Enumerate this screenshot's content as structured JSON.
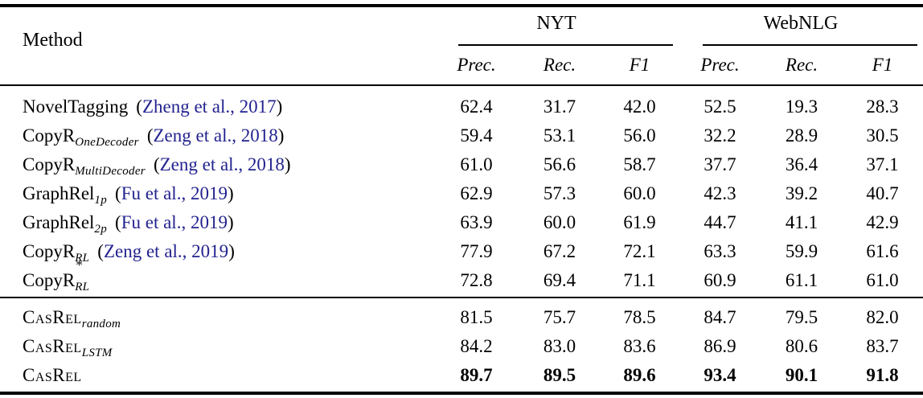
{
  "colors": {
    "citation": "#23238f",
    "text": "#000000"
  },
  "symbols": {
    "cite_open": "(",
    "cite_close": ")"
  },
  "header": {
    "method_label": "Method",
    "groups": [
      {
        "label": "NYT",
        "metrics": [
          "Prec.",
          "Rec.",
          "F1"
        ]
      },
      {
        "label": "WebNLG",
        "metrics": [
          "Prec.",
          "Rec.",
          "F1"
        ]
      }
    ]
  },
  "sections": [
    {
      "rows": [
        {
          "name": "NovelTagging",
          "smallcaps": false,
          "subscript": "",
          "superscript": "",
          "citation": "Zheng et al., 2017",
          "bold": false,
          "values": [
            "62.4",
            "31.7",
            "42.0",
            "52.5",
            "19.3",
            "28.3"
          ]
        },
        {
          "name": "CopyR",
          "smallcaps": false,
          "subscript": "OneDecoder",
          "superscript": "",
          "citation": "Zeng et al., 2018",
          "bold": false,
          "values": [
            "59.4",
            "53.1",
            "56.0",
            "32.2",
            "28.9",
            "30.5"
          ]
        },
        {
          "name": "CopyR",
          "smallcaps": false,
          "subscript": "MultiDecoder",
          "superscript": "",
          "citation": "Zeng et al., 2018",
          "bold": false,
          "values": [
            "61.0",
            "56.6",
            "58.7",
            "37.7",
            "36.4",
            "37.1"
          ]
        },
        {
          "name": "GraphRel",
          "smallcaps": false,
          "subscript": "1p",
          "superscript": "",
          "citation": "Fu et al., 2019",
          "bold": false,
          "values": [
            "62.9",
            "57.3",
            "60.0",
            "42.3",
            "39.2",
            "40.7"
          ]
        },
        {
          "name": "GraphRel",
          "smallcaps": false,
          "subscript": "2p",
          "superscript": "",
          "citation": "Fu et al., 2019",
          "bold": false,
          "values": [
            "63.9",
            "60.0",
            "61.9",
            "44.7",
            "41.1",
            "42.9"
          ]
        },
        {
          "name": "CopyR",
          "smallcaps": false,
          "subscript": "RL",
          "superscript": "",
          "citation": "Zeng et al., 2019",
          "bold": false,
          "values": [
            "77.9",
            "67.2",
            "72.1",
            "63.3",
            "59.9",
            "61.6"
          ]
        },
        {
          "name": "CopyR",
          "smallcaps": false,
          "subscript": "RL",
          "superscript": "*",
          "citation": "",
          "bold": false,
          "values": [
            "72.8",
            "69.4",
            "71.1",
            "60.9",
            "61.1",
            "61.0"
          ]
        }
      ]
    },
    {
      "rows": [
        {
          "name": "CasRel",
          "smallcaps": true,
          "subscript": "random",
          "superscript": "",
          "citation": "",
          "bold": false,
          "values": [
            "81.5",
            "75.7",
            "78.5",
            "84.7",
            "79.5",
            "82.0"
          ]
        },
        {
          "name": "CasRel",
          "smallcaps": true,
          "subscript": "LSTM",
          "superscript": "",
          "citation": "",
          "bold": false,
          "values": [
            "84.2",
            "83.0",
            "83.6",
            "86.9",
            "80.6",
            "83.7"
          ]
        },
        {
          "name": "CasRel",
          "smallcaps": true,
          "subscript": "",
          "superscript": "",
          "citation": "",
          "bold": true,
          "values": [
            "89.7",
            "89.5",
            "89.6",
            "93.4",
            "90.1",
            "91.8"
          ]
        }
      ]
    }
  ]
}
